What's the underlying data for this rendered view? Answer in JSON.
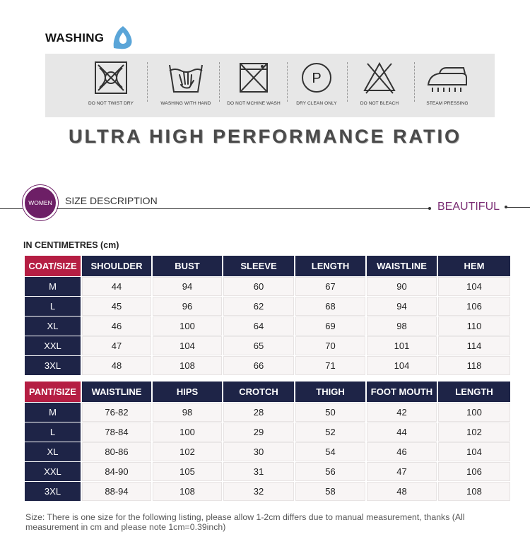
{
  "washing": {
    "title": "WASHING",
    "drop_icon": "water-drop-icon",
    "care": [
      {
        "icon": "no-tumble-dry-icon",
        "label": "DO NOT TWIST DRY"
      },
      {
        "icon": "hand-wash-icon",
        "label": "WASHING WITH HAND"
      },
      {
        "icon": "no-machine-wash-icon",
        "label": "DO NOT MCHINE WASH"
      },
      {
        "icon": "dry-clean-icon",
        "label": "DRY CLEAN ONLY",
        "glyph": "P"
      },
      {
        "icon": "no-bleach-icon",
        "label": "DO NOT BLEACH"
      },
      {
        "icon": "steam-iron-icon",
        "label": "STEAM PRESSING"
      }
    ]
  },
  "banner": "ULTRA HIGH PERFORMANCE RATIO",
  "size_section": {
    "badge": "WOMEN",
    "title": "SIZE DESCRIPTION",
    "tagline": "BEAUTIFUL",
    "unit_note": "IN CENTIMETRES (cm)"
  },
  "coat_table": {
    "headers": [
      "COAT/SIZE",
      "SHOULDER",
      "BUST",
      "SLEEVE",
      "LENGTH",
      "WAISTLINE",
      "HEM"
    ],
    "rows": [
      [
        "M",
        "44",
        "94",
        "60",
        "67",
        "90",
        "104"
      ],
      [
        "L",
        "45",
        "96",
        "62",
        "68",
        "94",
        "106"
      ],
      [
        "XL",
        "46",
        "100",
        "64",
        "69",
        "98",
        "110"
      ],
      [
        "XXL",
        "47",
        "104",
        "65",
        "70",
        "101",
        "114"
      ],
      [
        "3XL",
        "48",
        "108",
        "66",
        "71",
        "104",
        "118"
      ]
    ]
  },
  "pant_table": {
    "headers": [
      "PANT/SIZE",
      "WAISTLINE",
      "HIPS",
      "CROTCH",
      "THIGH",
      "FOOT MOUTH",
      "LENGTH"
    ],
    "rows": [
      [
        "M",
        "76-82",
        "98",
        "28",
        "50",
        "42",
        "100"
      ],
      [
        "L",
        "78-84",
        "100",
        "29",
        "52",
        "44",
        "102"
      ],
      [
        "XL",
        "80-86",
        "102",
        "30",
        "54",
        "46",
        "104"
      ],
      [
        "XXL",
        "84-90",
        "105",
        "31",
        "56",
        "47",
        "106"
      ],
      [
        "3XL",
        "88-94",
        "108",
        "32",
        "58",
        "48",
        "108"
      ]
    ]
  },
  "footnote": "Size: There is one size for the following listing, please allow 1-2cm differs due to manual measurement, thanks (All measurement in cm and please note 1cm=0.39inch)",
  "colors": {
    "header_navy": "#1e2447",
    "corner_red": "#b51e43",
    "accent_purple": "#6d1f66",
    "drop_blue": "#5aa5d8"
  }
}
